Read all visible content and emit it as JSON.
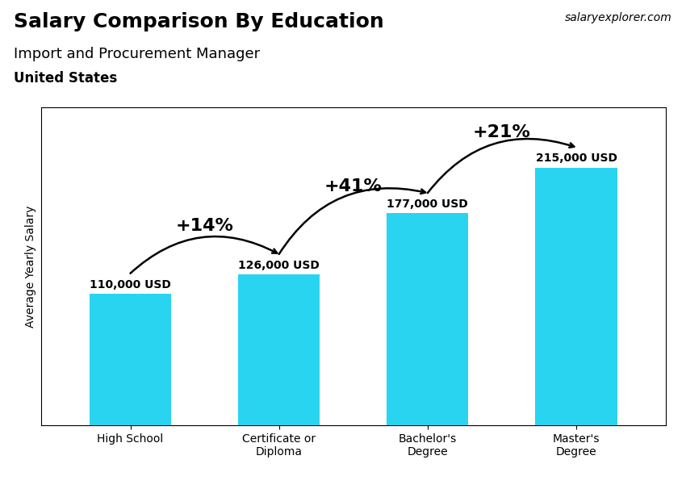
{
  "chart_data": {
    "type": "bar",
    "title": "Salary Comparison By Education",
    "subtitle": "Import and Procurement Manager",
    "country": "United States",
    "source": "salaryexplorer.com",
    "ylabel": "Average Yearly Salary",
    "categories": [
      "High School",
      "Certificate or\nDiploma",
      "Bachelor's\nDegree",
      "Master's\nDegree"
    ],
    "values": [
      110000,
      126000,
      177000,
      215000
    ],
    "value_labels": [
      "110,000 USD",
      "126,000 USD",
      "177,000 USD",
      "215,000 USD"
    ],
    "data_labels": true,
    "color": "#29d4f0",
    "ylim": [
      0,
      265000
    ],
    "yticks": [],
    "tick_labels": "x",
    "grid": false,
    "annotations": [
      {
        "from": "High School",
        "to": "Certificate or\nDiploma",
        "text": "+14%"
      },
      {
        "from": "Certificate or\nDiploma",
        "to": "Bachelor's\nDegree",
        "text": "+41%"
      },
      {
        "from": "Bachelor's\nDegree",
        "to": "Master's\nDegree",
        "text": "+21%"
      }
    ]
  }
}
